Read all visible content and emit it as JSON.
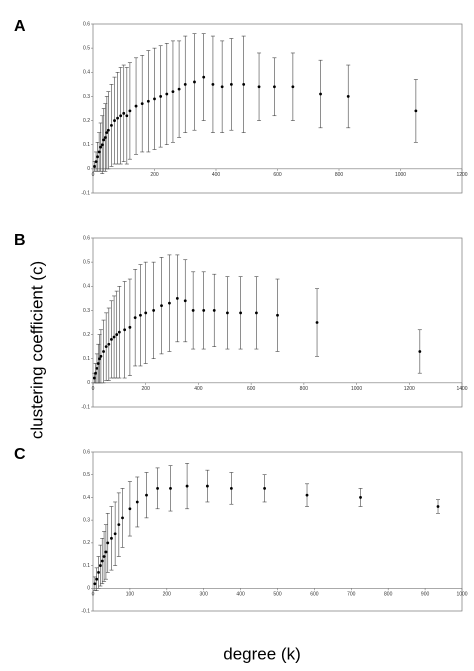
{
  "ylabel": "clustering coefficient (c)",
  "xlabel": "degree (k)",
  "chart_data": [
    {
      "type": "scatter",
      "panel": "A",
      "color": "#000000",
      "x": [
        5,
        10,
        15,
        20,
        25,
        30,
        35,
        40,
        45,
        50,
        60,
        70,
        80,
        90,
        100,
        110,
        120,
        140,
        160,
        180,
        200,
        220,
        240,
        260,
        280,
        300,
        330,
        360,
        390,
        420,
        450,
        490,
        540,
        590,
        650,
        740,
        830,
        1050
      ],
      "series": [
        {
          "values": [
            0.01,
            0.03,
            0.05,
            0.07,
            0.09,
            0.1,
            0.12,
            0.13,
            0.15,
            0.16,
            0.18,
            0.2,
            0.21,
            0.22,
            0.23,
            0.22,
            0.24,
            0.26,
            0.27,
            0.28,
            0.29,
            0.3,
            0.31,
            0.32,
            0.33,
            0.35,
            0.36,
            0.38,
            0.35,
            0.34,
            0.35,
            0.35,
            0.34,
            0.34,
            0.34,
            0.31,
            0.3,
            0.24
          ],
          "errors": [
            0.02,
            0.04,
            0.06,
            0.08,
            0.1,
            0.12,
            0.13,
            0.14,
            0.15,
            0.16,
            0.17,
            0.18,
            0.19,
            0.2,
            0.2,
            0.2,
            0.2,
            0.2,
            0.2,
            0.21,
            0.21,
            0.21,
            0.21,
            0.21,
            0.2,
            0.2,
            0.2,
            0.18,
            0.2,
            0.19,
            0.19,
            0.2,
            0.14,
            0.12,
            0.14,
            0.14,
            0.13,
            0.13
          ]
        }
      ],
      "xlim": [
        0,
        1200
      ],
      "xticks": [
        0,
        200,
        400,
        600,
        800,
        1000,
        1200
      ],
      "ylim": [
        -0.1,
        0.6
      ],
      "yticks": [
        -0.1,
        0,
        0.1,
        0.2,
        0.3,
        0.4,
        0.5,
        0.6
      ]
    },
    {
      "type": "scatter",
      "panel": "B",
      "color": "#000000",
      "x": [
        5,
        10,
        15,
        20,
        25,
        30,
        40,
        50,
        60,
        70,
        80,
        90,
        100,
        120,
        140,
        160,
        180,
        200,
        230,
        260,
        290,
        320,
        350,
        380,
        420,
        460,
        510,
        560,
        620,
        700,
        850,
        1240
      ],
      "series": [
        {
          "values": [
            0.02,
            0.04,
            0.06,
            0.08,
            0.1,
            0.11,
            0.13,
            0.15,
            0.16,
            0.18,
            0.19,
            0.2,
            0.21,
            0.22,
            0.23,
            0.27,
            0.28,
            0.29,
            0.3,
            0.32,
            0.33,
            0.35,
            0.34,
            0.3,
            0.3,
            0.3,
            0.29,
            0.29,
            0.29,
            0.28,
            0.25,
            0.13
          ],
          "errors": [
            0.02,
            0.04,
            0.06,
            0.08,
            0.1,
            0.11,
            0.13,
            0.14,
            0.15,
            0.16,
            0.17,
            0.18,
            0.19,
            0.2,
            0.2,
            0.2,
            0.21,
            0.21,
            0.2,
            0.2,
            0.2,
            0.18,
            0.17,
            0.16,
            0.16,
            0.15,
            0.15,
            0.15,
            0.15,
            0.15,
            0.14,
            0.09
          ]
        }
      ],
      "xlim": [
        0,
        1400
      ],
      "xticks": [
        0,
        200,
        400,
        600,
        800,
        1000,
        1200,
        1400
      ],
      "ylim": [
        -0.1,
        0.6
      ],
      "yticks": [
        -0.1,
        0,
        0.1,
        0.2,
        0.3,
        0.4,
        0.5,
        0.6
      ]
    },
    {
      "type": "scatter",
      "panel": "C",
      "color": "#000000",
      "x": [
        5,
        10,
        15,
        20,
        25,
        30,
        35,
        40,
        50,
        60,
        70,
        80,
        100,
        120,
        145,
        175,
        210,
        255,
        310,
        375,
        465,
        580,
        725,
        935
      ],
      "series": [
        {
          "values": [
            0.02,
            0.04,
            0.07,
            0.1,
            0.12,
            0.14,
            0.16,
            0.2,
            0.22,
            0.24,
            0.28,
            0.31,
            0.35,
            0.38,
            0.41,
            0.44,
            0.44,
            0.45,
            0.45,
            0.44,
            0.44,
            0.41,
            0.4,
            0.36
          ],
          "errors": [
            0.03,
            0.05,
            0.07,
            0.09,
            0.1,
            0.11,
            0.12,
            0.13,
            0.14,
            0.14,
            0.14,
            0.13,
            0.12,
            0.11,
            0.1,
            0.09,
            0.1,
            0.1,
            0.07,
            0.07,
            0.06,
            0.05,
            0.04,
            0.03
          ]
        }
      ],
      "xlim": [
        0,
        1000
      ],
      "xticks": [
        0,
        100,
        200,
        300,
        400,
        500,
        600,
        700,
        800,
        900,
        1000
      ],
      "ylim": [
        -0.1,
        0.6
      ],
      "yticks": [
        -0.1,
        0,
        0.1,
        0.2,
        0.3,
        0.4,
        0.5,
        0.6
      ]
    }
  ]
}
